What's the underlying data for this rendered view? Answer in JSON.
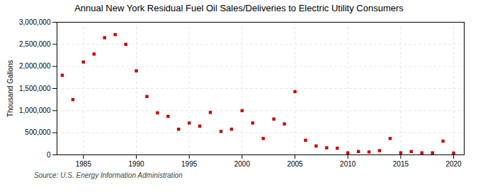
{
  "chart_data": {
    "type": "scatter",
    "title": "Annual New York Residual Fuel Oil Sales/Deliveries to Electric Utility Consumers",
    "ylabel": "Thousand Gallons",
    "source": "Source: U.S. Energy Information Administration",
    "x": [
      1983,
      1984,
      1985,
      1986,
      1987,
      1988,
      1989,
      1990,
      1991,
      1992,
      1993,
      1994,
      1995,
      1996,
      1997,
      1998,
      1999,
      2000,
      2001,
      2002,
      2003,
      2004,
      2005,
      2006,
      2007,
      2008,
      2009,
      2010,
      2011,
      2012,
      2013,
      2014,
      2015,
      2016,
      2017,
      2018,
      2019,
      2020
    ],
    "values": [
      1800000,
      1250000,
      2100000,
      2280000,
      2650000,
      2720000,
      2500000,
      1900000,
      1320000,
      950000,
      870000,
      580000,
      720000,
      650000,
      960000,
      530000,
      580000,
      1000000,
      720000,
      370000,
      810000,
      700000,
      1430000,
      330000,
      200000,
      160000,
      150000,
      45000,
      75000,
      65000,
      95000,
      370000,
      45000,
      75000,
      45000,
      45000,
      310000,
      40000
    ],
    "color": "#cc0000",
    "marker": "square",
    "xlim": [
      1982.5,
      2021
    ],
    "xticks": [
      1985,
      1990,
      1995,
      2000,
      2005,
      2010,
      2015,
      2020
    ],
    "ylim": [
      0,
      3000000
    ],
    "yticks": [
      0,
      {
        "value": 500000,
        "label": "500,000"
      },
      {
        "value": 1000000,
        "label": "1,000,000"
      },
      {
        "value": 1500000,
        "label": "1,500,000"
      },
      {
        "value": 2000000,
        "label": "2,000,000"
      },
      {
        "value": 2500000,
        "label": "2,500,000"
      },
      {
        "value": 3000000,
        "label": "3,000,000"
      }
    ],
    "grid": true
  }
}
